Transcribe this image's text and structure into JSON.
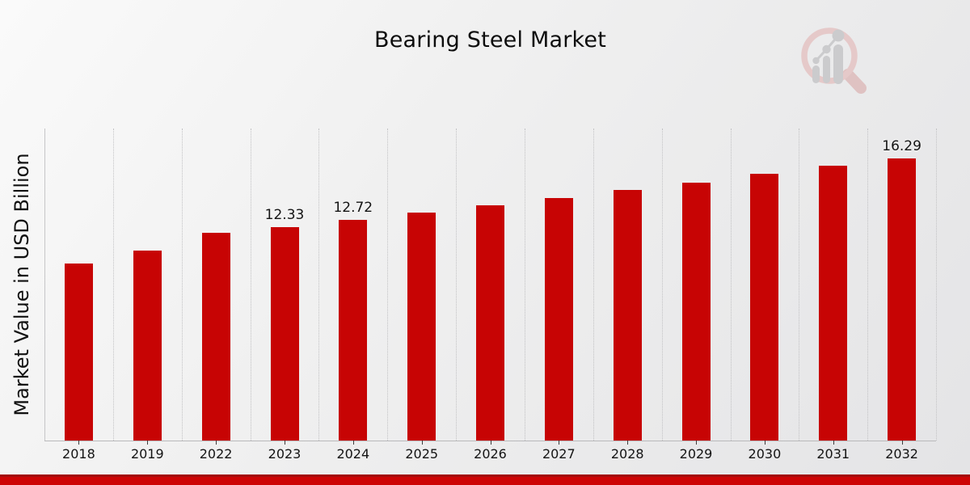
{
  "header": {
    "title": "Bearing Steel Market"
  },
  "logo": {
    "name": "magnifier-bar-chart-logo",
    "ring_color": "#e5c9c9",
    "handle_color": "#dfc2c2",
    "bar_color": "#cbcbcd"
  },
  "chart_data": {
    "type": "bar",
    "title": "Bearing Steel Market",
    "xlabel": "",
    "ylabel": "Market Value in USD Billion",
    "categories": [
      "2018",
      "2019",
      "2022",
      "2023",
      "2024",
      "2025",
      "2026",
      "2027",
      "2028",
      "2029",
      "2030",
      "2031",
      "2032"
    ],
    "values": [
      10.2,
      10.95,
      11.97,
      12.33,
      12.72,
      13.15,
      13.55,
      14.0,
      14.45,
      14.9,
      15.37,
      15.84,
      16.29
    ],
    "data_labels": [
      "",
      "",
      "",
      "12.33",
      "12.72",
      "",
      "",
      "",
      "",
      "",
      "",
      "",
      "16.29"
    ],
    "ylim": [
      0,
      18
    ],
    "y_axis_ticks_visible": false,
    "grid": "vertical-dotted",
    "legend": "none",
    "bar_color": "#c70404",
    "gridline_color": "#c2c2c4"
  },
  "footer": {
    "band_color": "#cd0404"
  }
}
